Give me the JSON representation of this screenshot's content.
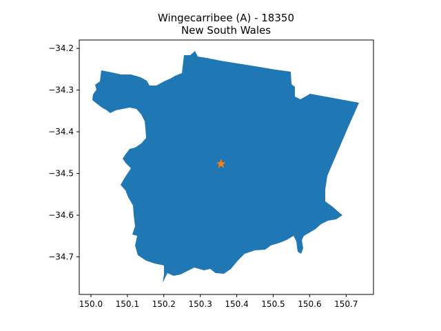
{
  "title": {
    "line1": "Wingecarribee (A) - 18350",
    "line2": "New South Wales"
  },
  "colors": {
    "region_fill": "#1f77b4",
    "marker": "#ff7f0e",
    "axes": "#000000",
    "background": "#ffffff"
  },
  "map": {
    "region_name": "Wingecarribee (A) - 18350",
    "centroid_marker": {
      "lon": 150.357,
      "lat": -34.477,
      "symbol": "star-icon"
    },
    "xlim": [
      149.968,
      150.775
    ],
    "ylim": [
      -34.79,
      -34.18
    ],
    "x_ticks": [
      {
        "value": 150.0,
        "label": "150.0"
      },
      {
        "value": 150.1,
        "label": "150.1"
      },
      {
        "value": 150.2,
        "label": "150.2"
      },
      {
        "value": 150.3,
        "label": "150.3"
      },
      {
        "value": 150.4,
        "label": "150.4"
      },
      {
        "value": 150.5,
        "label": "150.5"
      },
      {
        "value": 150.6,
        "label": "150.6"
      },
      {
        "value": 150.7,
        "label": "150.7"
      }
    ],
    "y_ticks": [
      {
        "value": -34.2,
        "label": "−34.2"
      },
      {
        "value": -34.3,
        "label": "−34.3"
      },
      {
        "value": -34.4,
        "label": "−34.4"
      },
      {
        "value": -34.5,
        "label": "−34.5"
      },
      {
        "value": -34.6,
        "label": "−34.6"
      },
      {
        "value": -34.7,
        "label": "−34.7"
      }
    ]
  }
}
